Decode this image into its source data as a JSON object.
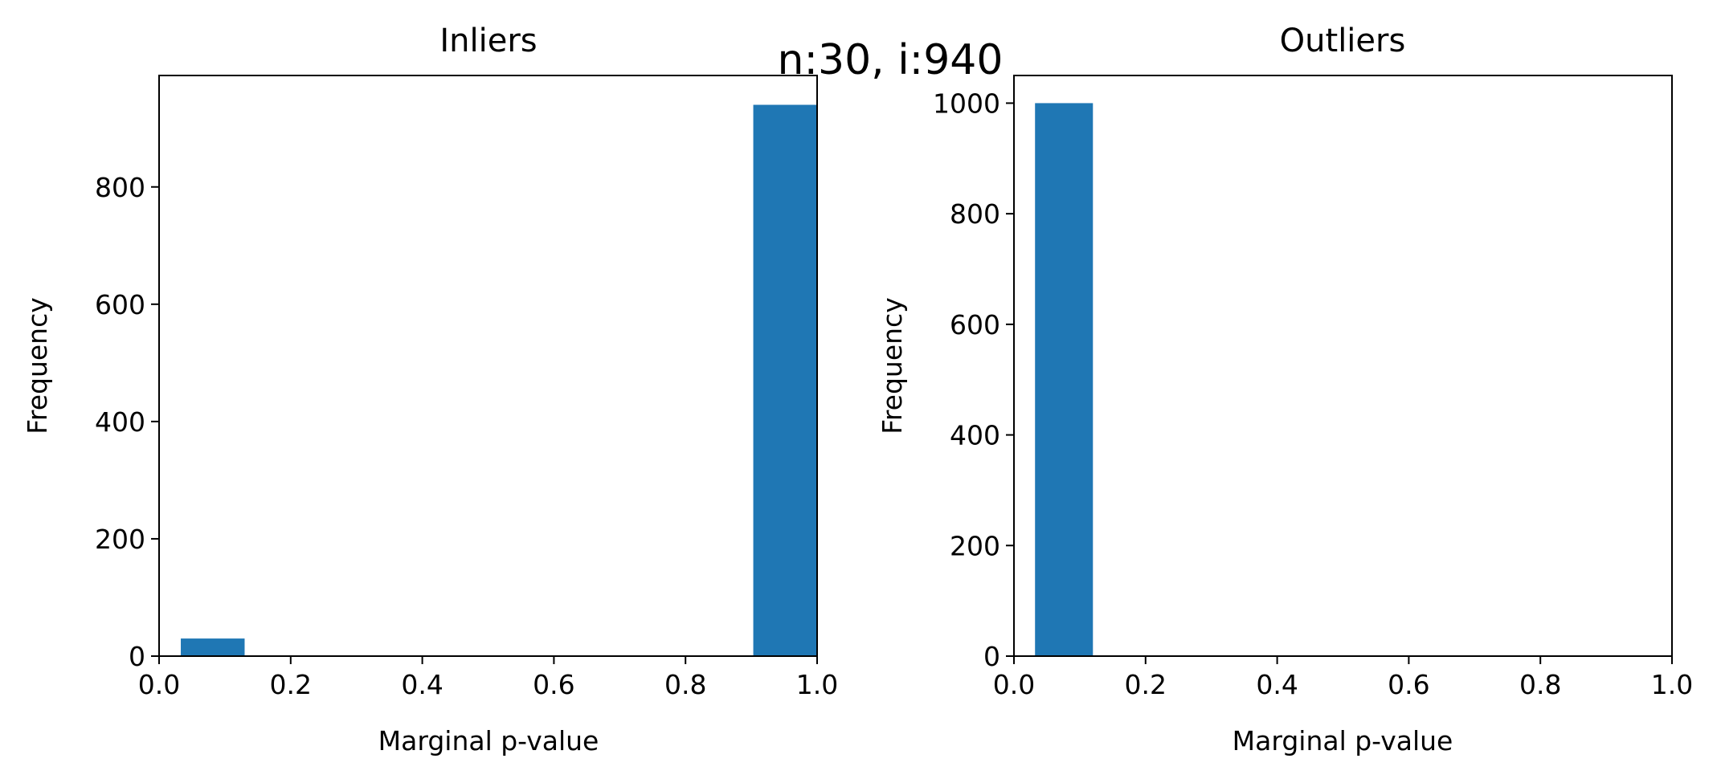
{
  "figure": {
    "suptitle": "n:30, i:940"
  },
  "chart_data": [
    {
      "type": "bar",
      "title": "Inliers",
      "xlabel": "Marginal p-value",
      "ylabel": "Frequency",
      "xlim": [
        0.0,
        1.0
      ],
      "ylim": [
        0,
        990
      ],
      "xticks": [
        "0.0",
        "0.2",
        "0.4",
        "0.6",
        "0.8",
        "1.0"
      ],
      "yticks": [
        "0",
        "200",
        "400",
        "600",
        "800"
      ],
      "bars": [
        {
          "x0": 0.033,
          "x1": 0.13,
          "value": 30
        },
        {
          "x0": 0.903,
          "x1": 1.0,
          "value": 940
        }
      ],
      "bar_color": "#1f77b4",
      "grid": false
    },
    {
      "type": "bar",
      "title": "Outliers",
      "xlabel": "Marginal p-value",
      "ylabel": "Frequency",
      "xlim": [
        0.0,
        1.0
      ],
      "ylim": [
        0,
        1050
      ],
      "xticks": [
        "0.0",
        "0.2",
        "0.4",
        "0.6",
        "0.8",
        "1.0"
      ],
      "yticks": [
        "0",
        "200",
        "400",
        "600",
        "800",
        "1000"
      ],
      "bars": [
        {
          "x0": 0.032,
          "x1": 0.12,
          "value": 1000
        }
      ],
      "bar_color": "#1f77b4",
      "grid": false
    }
  ]
}
